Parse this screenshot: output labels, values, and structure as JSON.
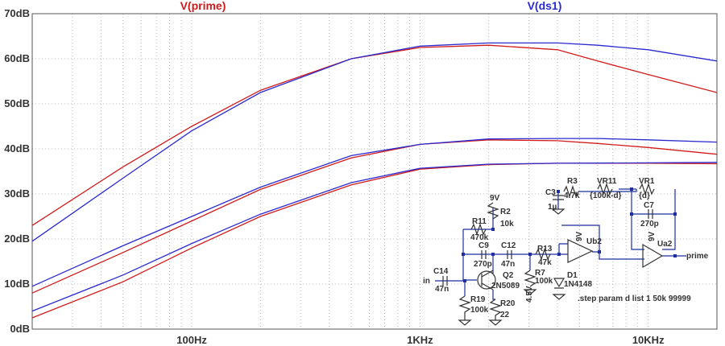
{
  "window": {
    "background": "#ffffff"
  },
  "chart_data": {
    "type": "line",
    "xscale": "log",
    "xlim": [
      20,
      20000
    ],
    "ylim": [
      0,
      70
    ],
    "ylabel_unit": "dB",
    "grid": "dotted",
    "y_ticks": [
      "0dB",
      "10dB",
      "20dB",
      "30dB",
      "40dB",
      "50dB",
      "60dB",
      "70dB"
    ],
    "x_ticks": [
      "100Hz",
      "1KHz",
      "10KHz"
    ],
    "legend": [
      {
        "name": "V(prime)",
        "color": "#d11a1a"
      },
      {
        "name": "V(ds1)",
        "color": "#2a2ad0"
      }
    ],
    "series": [
      {
        "name": "V(prime)",
        "color": "#d11a1a",
        "points": [
          [
            20,
            23
          ],
          [
            50,
            36
          ],
          [
            100,
            45
          ],
          [
            200,
            53
          ],
          [
            500,
            60
          ],
          [
            1000,
            62.5
          ],
          [
            2000,
            63
          ],
          [
            4000,
            62
          ],
          [
            6000,
            59.5
          ],
          [
            10000,
            56.5
          ],
          [
            20000,
            52.5
          ]
        ]
      },
      {
        "name": "V(ds1)",
        "color": "#2a2ad0",
        "points": [
          [
            20,
            19.5
          ],
          [
            50,
            33.5
          ],
          [
            100,
            44
          ],
          [
            200,
            52.5
          ],
          [
            500,
            60
          ],
          [
            1000,
            62.8
          ],
          [
            2000,
            63.5
          ],
          [
            4000,
            63.5
          ],
          [
            6000,
            63
          ],
          [
            10000,
            62
          ],
          [
            20000,
            59.5
          ]
        ]
      },
      {
        "name": "V(prime)",
        "color": "#d11a1a",
        "points": [
          [
            20,
            8
          ],
          [
            50,
            17
          ],
          [
            100,
            24
          ],
          [
            200,
            31
          ],
          [
            500,
            38
          ],
          [
            1000,
            41
          ],
          [
            2000,
            42
          ],
          [
            4000,
            41.8
          ],
          [
            6000,
            41.2
          ],
          [
            10000,
            40.3
          ],
          [
            20000,
            38.8
          ]
        ]
      },
      {
        "name": "V(ds1)",
        "color": "#2a2ad0",
        "points": [
          [
            20,
            9.5
          ],
          [
            50,
            18.5
          ],
          [
            100,
            25
          ],
          [
            200,
            31.5
          ],
          [
            500,
            38.5
          ],
          [
            1000,
            41
          ],
          [
            2000,
            42.2
          ],
          [
            4000,
            42.3
          ],
          [
            6000,
            42.3
          ],
          [
            10000,
            42
          ],
          [
            20000,
            41.5
          ]
        ]
      },
      {
        "name": "V(prime)",
        "color": "#d11a1a",
        "points": [
          [
            20,
            2.5
          ],
          [
            50,
            10.5
          ],
          [
            100,
            18
          ],
          [
            200,
            25
          ],
          [
            500,
            32
          ],
          [
            1000,
            35.5
          ],
          [
            2000,
            36.5
          ],
          [
            4000,
            36.8
          ],
          [
            10000,
            36.8
          ],
          [
            20000,
            36.7
          ]
        ]
      },
      {
        "name": "V(ds1)",
        "color": "#2a2ad0",
        "points": [
          [
            20,
            4
          ],
          [
            50,
            12
          ],
          [
            100,
            19
          ],
          [
            200,
            25.5
          ],
          [
            500,
            32.5
          ],
          [
            1000,
            35.7
          ],
          [
            2000,
            36.6
          ],
          [
            4000,
            36.8
          ],
          [
            10000,
            36.9
          ],
          [
            20000,
            37
          ]
        ]
      }
    ]
  },
  "schematic": {
    "labels": {
      "r3": "R3",
      "r3_val": "4.7k",
      "vr11": "VR11",
      "vr11_val": "{100k-d}",
      "vr1": "VR1",
      "vr1_val": "{d}",
      "c3": "C3",
      "c3_val": "1µ",
      "c7": "C7",
      "c7_val": "270p",
      "r2": "R2",
      "r2_val": "10k",
      "r2_supply": "9V",
      "r11": "R11",
      "r11_val": "470k",
      "c9": "C9",
      "c9_val": "270p",
      "c12": "C12",
      "c12_val": "47n",
      "r13": "R13",
      "r13_val": "47k",
      "r7": "R7",
      "r7_val": "100k",
      "d1": "D1",
      "d1_val": "1N4148",
      "bias": "4.5V",
      "ub2": "Ub2",
      "ub2_supply": "9V",
      "ua2": "Ua2",
      "ua2_supply": "9V",
      "c14": "C14",
      "c14_val": "47n",
      "in": "in",
      "q2": "Q2",
      "q2_val": "2N5089",
      "r19": "R19",
      "r19_val": "100k",
      "r20": "R20",
      "r20_val": "22",
      "out": "prime",
      "step": ".step param d list 1 50k 99999"
    }
  }
}
